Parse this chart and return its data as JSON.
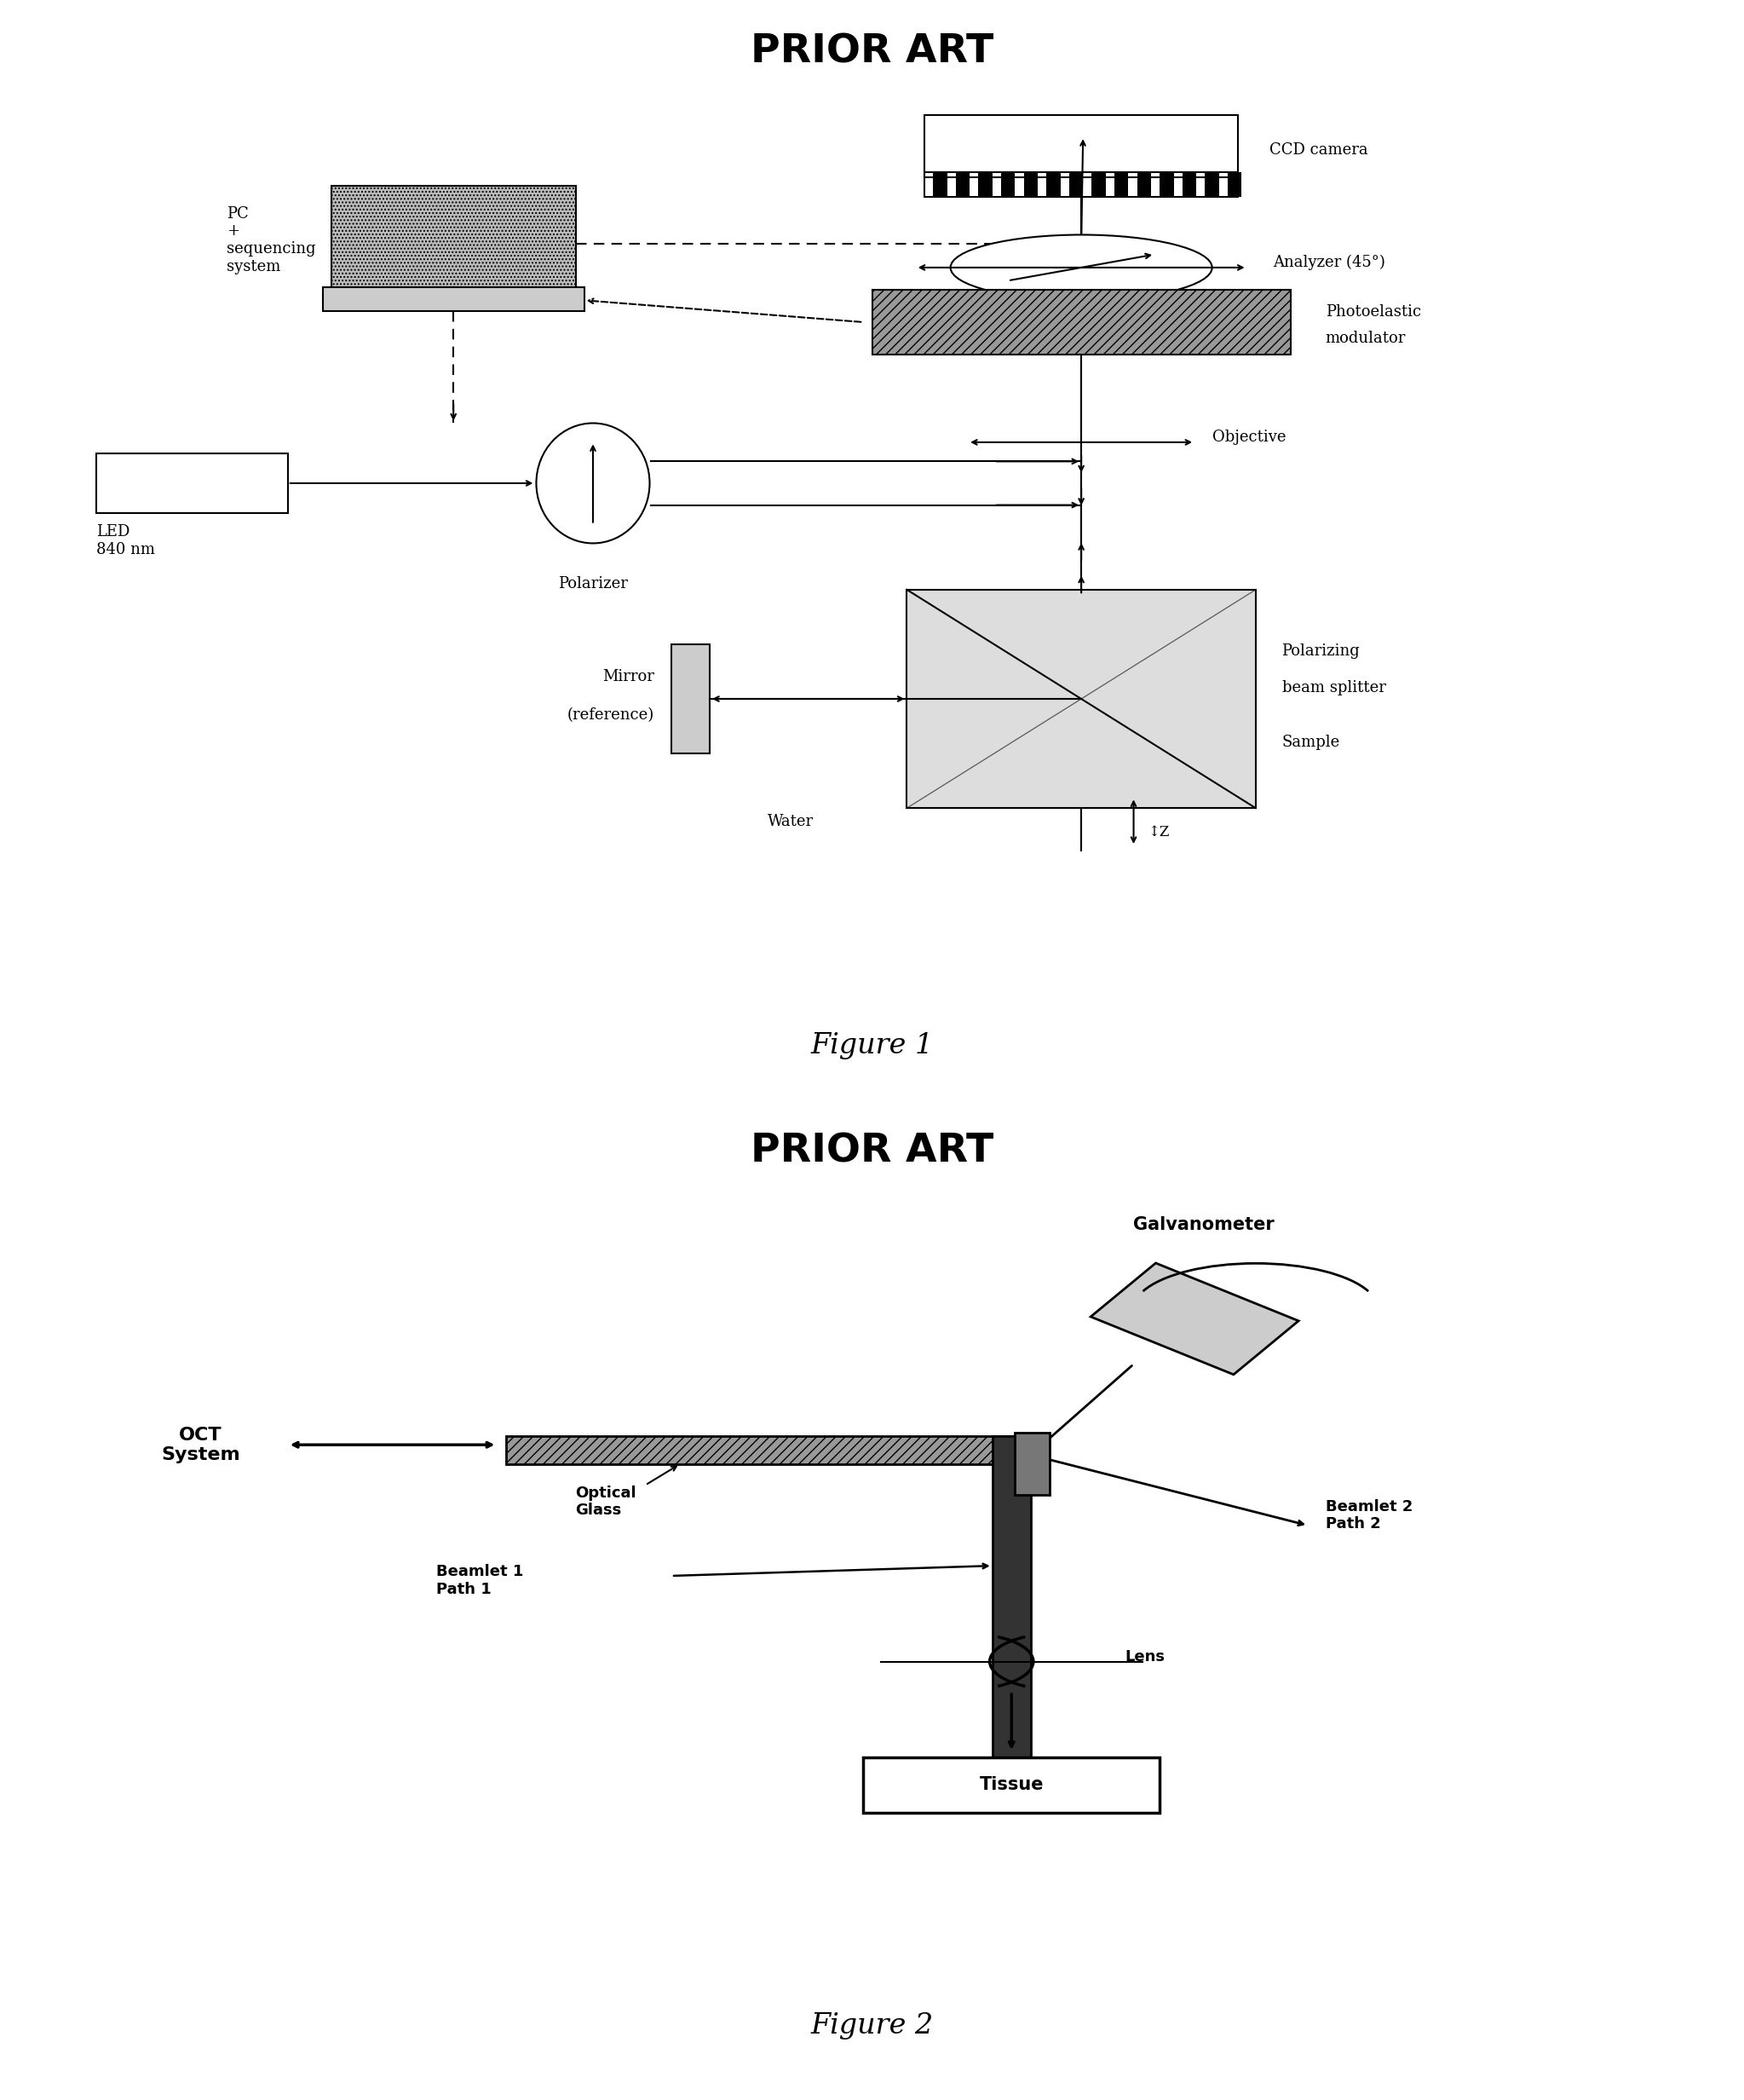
{
  "title1": "PRIOR ART",
  "title2": "PRIOR ART",
  "fig1_caption": "Figure 1",
  "fig2_caption": "Figure 2",
  "background_color": "#ffffff",
  "text_color": "#000000",
  "fig1_labels": {
    "ccd_camera": "CCD camera",
    "analyzer": "Analyzer (45°)",
    "photoelastic_line1": "Photoelastic",
    "photoelastic_line2": "modulator",
    "pc": "PC\n+\nsequencing\nsystem",
    "led": "LED\n840 nm",
    "polarizer": "Polarizer",
    "objective": "Objective",
    "mirror_line1": "Mirror",
    "mirror_line2": "(reference)",
    "pbs_line1": "Polarizing",
    "pbs_line2": "beam splitter",
    "sample": "Sample",
    "water": "Water",
    "z": "↕Z"
  },
  "fig2_labels": {
    "oct": "OCT\nSystem",
    "optical_glass": "Optical\nGlass",
    "galvanometer": "Galvanometer",
    "beamlet1": "Beamlet 1\nPath 1",
    "beamlet2": "Beamlet 2\nPath 2",
    "lens": "Lens",
    "tissue": "Tissue"
  }
}
